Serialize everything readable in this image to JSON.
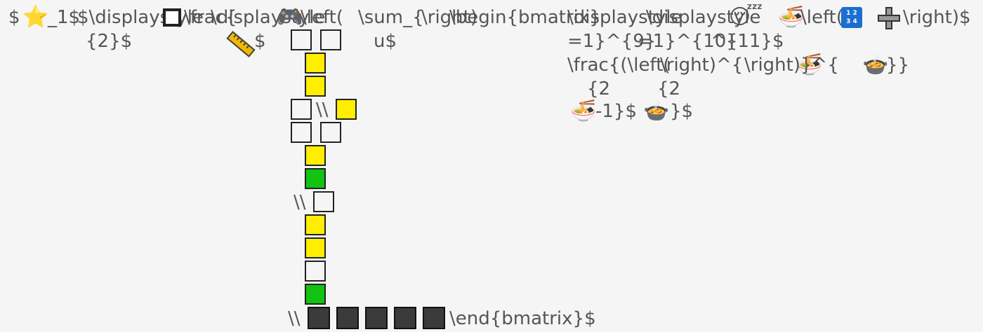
{
  "fragments": {
    "f1": "$",
    "f2": "_1$",
    "f3": "$\\displaystyle",
    "f4": "{2}$",
    "f5": "\\frac{",
    "f6": "\\displaystyle",
    "f7": "$",
    "f8": "\\left(",
    "f9": "\\sum_{",
    "f10": "\\right)",
    "f11": "\\begin{bmatrix}",
    "f12": "u$",
    "f13": "\\displaystyle",
    "f14": "=1}^{9}",
    "f15": "=1}^{10}",
    "f16": "^{11}$",
    "f17": "\\frac{(\\left(",
    "f18": "\\right)^{",
    "f19": "\\right)}^{",
    "f20": "}}",
    "f21": "{2",
    "f22": "-1}$",
    "f23": "{2",
    "f24": "}$",
    "f25": "\\left(",
    "f26": "\\right)$",
    "f27": "\\\\",
    "f28": "\\\\",
    "f29": "\\\\",
    "f30": "\\end{bmatrix}$"
  },
  "icons": [
    "star-icon",
    "square-icon",
    "ruler-icon",
    "gamepad-icon",
    "sleeping-face-icon",
    "noodles-icon",
    "calendar-icon",
    "plus-icon",
    "stew-icon"
  ],
  "calendar_text": [
    "1 2",
    "3 4"
  ],
  "colors": {
    "text": "#555555",
    "yellow": "#ffee00",
    "green": "#11c411",
    "dark": "#3b3b3b",
    "background": "#f5f5f5"
  }
}
